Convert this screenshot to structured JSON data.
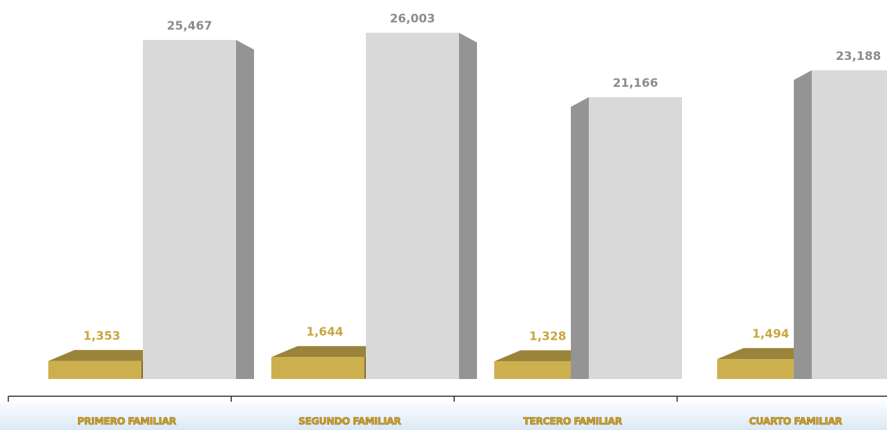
{
  "chart_data": {
    "type": "bar3d",
    "categories": [
      "PRIMERO FAMILIAR",
      "SEGUNDO FAMILIAR",
      "TERCERO FAMILIAR",
      "CUARTO FAMILIAR"
    ],
    "series": [
      {
        "color": "#cdb04e",
        "values": [
          1353,
          1644,
          1328,
          1494
        ],
        "value_labels": [
          "1,353",
          "1,644",
          "1,328",
          "1,494"
        ]
      },
      {
        "color": "#d9d9d9",
        "values": [
          25467,
          26003,
          21166,
          23188
        ],
        "value_labels": [
          "25,467",
          "26,003",
          "21,166",
          "23,188"
        ]
      }
    ],
    "ylim": [
      0,
      28000
    ]
  }
}
